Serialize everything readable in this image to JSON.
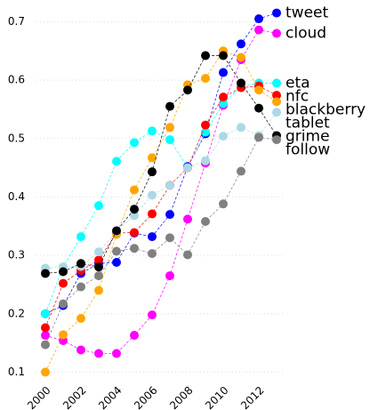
{
  "chart_data": {
    "type": "line",
    "x": [
      2000,
      2001,
      2002,
      2003,
      2004,
      2005,
      2006,
      2007,
      2008,
      2009,
      2010,
      2011,
      2012,
      2013
    ],
    "xlim": [
      1999.5,
      2013.5
    ],
    "xticks": [
      2000,
      2002,
      2004,
      2006,
      2008,
      2010,
      2012
    ],
    "ylim": [
      0.09,
      0.725
    ],
    "yticks": [
      0.1,
      0.2,
      0.3,
      0.4,
      0.5,
      0.6,
      0.7
    ],
    "grid": true,
    "series": [
      {
        "name": "tweet",
        "color": "#0000ff",
        "values": [
          0.2,
          0.214,
          0.269,
          0.286,
          0.288,
          0.338,
          0.332,
          0.37,
          0.452,
          0.508,
          0.613,
          0.662,
          0.705,
          0.715
        ]
      },
      {
        "name": "cloud",
        "color": "#ff00ff",
        "values": [
          0.163,
          0.154,
          0.138,
          0.132,
          0.132,
          0.163,
          0.198,
          0.265,
          0.362,
          0.458,
          0.557,
          0.635,
          0.686,
          0.68
        ]
      },
      {
        "name": "eta",
        "color": "#00ffff",
        "values": [
          0.2,
          0.28,
          0.332,
          0.385,
          0.461,
          0.493,
          0.513,
          0.498,
          0.45,
          0.511,
          0.56,
          0.589,
          0.595,
          0.595
        ]
      },
      {
        "name": "nfc",
        "color": "#ff0000",
        "values": [
          0.176,
          0.252,
          0.274,
          0.292,
          0.338,
          0.339,
          0.371,
          0.42,
          0.45,
          0.523,
          0.571,
          0.587,
          0.59,
          0.574
        ]
      },
      {
        "name": "blackberry",
        "color": "#ffa500",
        "values": [
          0.1,
          0.164,
          0.192,
          0.24,
          0.336,
          0.412,
          0.467,
          0.519,
          0.592,
          0.603,
          0.65,
          0.639,
          0.583,
          0.563
        ]
      },
      {
        "name": "tablet",
        "color": "#add8e6",
        "values": [
          0.278,
          0.28,
          0.281,
          0.306,
          0.341,
          0.368,
          0.403,
          0.42,
          0.45,
          0.462,
          0.504,
          0.519,
          0.505,
          0.545
        ]
      },
      {
        "name": "grime",
        "color": "#000000",
        "values": [
          0.269,
          0.272,
          0.286,
          0.28,
          0.342,
          0.379,
          0.443,
          0.555,
          0.583,
          0.642,
          0.642,
          0.595,
          0.552,
          0.505
        ]
      },
      {
        "name": "follow",
        "color": "#808080",
        "values": [
          0.147,
          0.217,
          0.246,
          0.265,
          0.307,
          0.312,
          0.303,
          0.33,
          0.301,
          0.358,
          0.388,
          0.444,
          0.502,
          0.498
        ]
      }
    ]
  }
}
